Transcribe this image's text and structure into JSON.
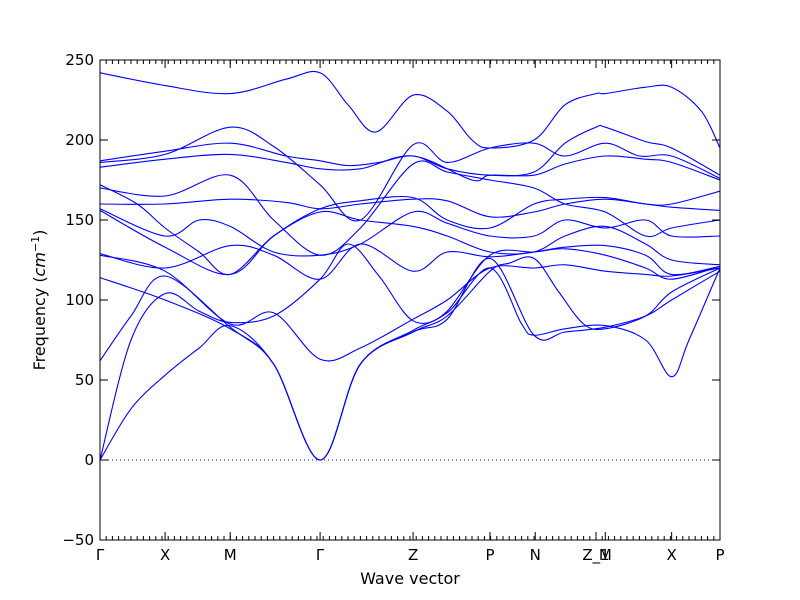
{
  "chart_data": {
    "type": "line",
    "xlabel": "Wave vector",
    "ylabel": "Frequency ($cm^{-1}$)",
    "ylabel_parts": {
      "text": "Frequency (",
      "unit": "cm",
      "exp": "−1",
      "close": ")"
    },
    "ylim": [
      -50,
      250
    ],
    "yticks": [
      -50,
      0,
      50,
      100,
      150,
      200,
      250
    ],
    "ytick_labels": [
      "−50",
      "0",
      "50",
      "100",
      "150",
      "200",
      "250"
    ],
    "xlim": [
      0,
      1
    ],
    "xticks": [
      {
        "x": 0.0,
        "label": "Γ"
      },
      {
        "x": 0.105,
        "label": "X"
      },
      {
        "x": 0.21,
        "label": "M"
      },
      {
        "x": 0.355,
        "label": "Γ"
      },
      {
        "x": 0.505,
        "label": "Z"
      },
      {
        "x": 0.629,
        "label": "P"
      },
      {
        "x": 0.702,
        "label": "N"
      },
      {
        "x": 0.8,
        "label": "Z_1"
      },
      {
        "x": 0.815,
        "label": "M"
      },
      {
        "x": 0.922,
        "label": "X"
      },
      {
        "x": 1.0,
        "label": "P"
      }
    ],
    "zero_line": true,
    "grid": false,
    "legend": "none",
    "line_color": "#0000ff",
    "series": [
      {
        "points": [
          [
            0,
            242
          ],
          [
            0.105,
            234
          ],
          [
            0.21,
            229
          ],
          [
            0.3,
            238
          ],
          [
            0.355,
            242
          ],
          [
            0.4,
            222
          ],
          [
            0.445,
            205
          ],
          [
            0.505,
            228
          ],
          [
            0.56,
            218
          ],
          [
            0.6,
            200
          ],
          [
            0.629,
            195
          ],
          [
            0.7,
            200
          ],
          [
            0.75,
            222
          ],
          [
            0.8,
            229
          ],
          [
            0.815,
            229
          ],
          [
            0.88,
            233
          ],
          [
            0.922,
            233
          ],
          [
            0.97,
            218
          ],
          [
            1.0,
            195
          ]
        ]
      },
      {
        "points": [
          [
            0,
            187
          ],
          [
            0.105,
            193
          ],
          [
            0.21,
            198
          ],
          [
            0.3,
            190
          ],
          [
            0.355,
            187
          ],
          [
            0.4,
            184
          ],
          [
            0.45,
            186
          ],
          [
            0.505,
            190
          ],
          [
            0.56,
            182
          ],
          [
            0.629,
            178
          ],
          [
            0.7,
            180
          ],
          [
            0.75,
            198
          ],
          [
            0.8,
            208
          ],
          [
            0.815,
            208
          ],
          [
            0.88,
            199
          ],
          [
            0.922,
            195
          ],
          [
            1.0,
            178
          ]
        ]
      },
      {
        "points": [
          [
            0,
            186
          ],
          [
            0.105,
            191
          ],
          [
            0.21,
            208
          ],
          [
            0.28,
            196
          ],
          [
            0.355,
            172
          ],
          [
            0.42,
            150
          ],
          [
            0.505,
            197
          ],
          [
            0.56,
            186
          ],
          [
            0.629,
            195
          ],
          [
            0.7,
            198
          ],
          [
            0.75,
            190
          ],
          [
            0.815,
            198
          ],
          [
            0.87,
            190
          ],
          [
            0.922,
            190
          ],
          [
            1.0,
            176
          ]
        ]
      },
      {
        "points": [
          [
            0,
            183
          ],
          [
            0.105,
            188
          ],
          [
            0.21,
            191
          ],
          [
            0.3,
            186
          ],
          [
            0.355,
            182
          ],
          [
            0.42,
            182
          ],
          [
            0.505,
            190
          ],
          [
            0.6,
            175
          ],
          [
            0.629,
            178
          ],
          [
            0.7,
            178
          ],
          [
            0.75,
            185
          ],
          [
            0.815,
            190
          ],
          [
            0.88,
            188
          ],
          [
            0.922,
            186
          ],
          [
            1.0,
            175
          ]
        ]
      },
      {
        "points": [
          [
            0,
            172
          ],
          [
            0.06,
            160
          ],
          [
            0.105,
            145
          ],
          [
            0.16,
            130
          ],
          [
            0.21,
            116
          ],
          [
            0.28,
            140
          ],
          [
            0.355,
            157
          ],
          [
            0.42,
            162
          ],
          [
            0.505,
            164
          ],
          [
            0.56,
            150
          ],
          [
            0.629,
            145
          ],
          [
            0.7,
            160
          ],
          [
            0.75,
            163
          ],
          [
            0.815,
            164
          ],
          [
            0.88,
            160
          ],
          [
            0.922,
            160
          ],
          [
            1.0,
            168
          ]
        ]
      },
      {
        "points": [
          [
            0,
            170
          ],
          [
            0.105,
            165
          ],
          [
            0.21,
            178
          ],
          [
            0.28,
            150
          ],
          [
            0.355,
            128
          ],
          [
            0.42,
            145
          ],
          [
            0.505,
            185
          ],
          [
            0.56,
            180
          ],
          [
            0.629,
            175
          ],
          [
            0.7,
            170
          ],
          [
            0.75,
            160
          ],
          [
            0.815,
            155
          ],
          [
            0.88,
            140
          ],
          [
            0.922,
            145
          ],
          [
            1.0,
            150
          ]
        ]
      },
      {
        "points": [
          [
            0,
            160
          ],
          [
            0.105,
            160
          ],
          [
            0.21,
            163
          ],
          [
            0.3,
            161
          ],
          [
            0.355,
            157
          ],
          [
            0.42,
            160
          ],
          [
            0.505,
            163
          ],
          [
            0.56,
            162
          ],
          [
            0.629,
            152
          ],
          [
            0.7,
            155
          ],
          [
            0.75,
            160
          ],
          [
            0.815,
            163
          ],
          [
            0.88,
            160
          ],
          [
            0.922,
            158
          ],
          [
            1.0,
            156
          ]
        ]
      },
      {
        "points": [
          [
            0,
            157
          ],
          [
            0.105,
            140
          ],
          [
            0.16,
            150
          ],
          [
            0.21,
            146
          ],
          [
            0.28,
            130
          ],
          [
            0.355,
            128
          ],
          [
            0.42,
            135
          ],
          [
            0.505,
            155
          ],
          [
            0.56,
            148
          ],
          [
            0.629,
            140
          ],
          [
            0.7,
            140
          ],
          [
            0.75,
            150
          ],
          [
            0.815,
            145
          ],
          [
            0.88,
            150
          ],
          [
            0.922,
            140
          ],
          [
            1.0,
            140
          ]
        ]
      },
      {
        "points": [
          [
            0,
            156
          ],
          [
            0.105,
            133
          ],
          [
            0.21,
            116
          ],
          [
            0.28,
            140
          ],
          [
            0.355,
            155
          ],
          [
            0.42,
            150
          ],
          [
            0.505,
            146
          ],
          [
            0.56,
            140
          ],
          [
            0.629,
            130
          ],
          [
            0.7,
            130
          ],
          [
            0.75,
            140
          ],
          [
            0.815,
            146
          ],
          [
            0.88,
            135
          ],
          [
            0.922,
            125
          ],
          [
            1.0,
            122
          ]
        ]
      },
      {
        "points": [
          [
            0,
            129
          ],
          [
            0.105,
            120
          ],
          [
            0.21,
            134
          ],
          [
            0.28,
            128
          ],
          [
            0.355,
            113
          ],
          [
            0.42,
            135
          ],
          [
            0.505,
            118
          ],
          [
            0.56,
            130
          ],
          [
            0.629,
            127
          ],
          [
            0.7,
            130
          ],
          [
            0.75,
            133
          ],
          [
            0.815,
            134
          ],
          [
            0.88,
            128
          ],
          [
            0.922,
            116
          ],
          [
            1.0,
            121
          ]
        ]
      },
      {
        "points": [
          [
            0,
            128
          ],
          [
            0.105,
            118
          ],
          [
            0.21,
            85
          ],
          [
            0.28,
            92
          ],
          [
            0.355,
            63
          ],
          [
            0.42,
            70
          ],
          [
            0.505,
            88
          ],
          [
            0.56,
            100
          ],
          [
            0.629,
            120
          ],
          [
            0.7,
            120
          ],
          [
            0.75,
            122
          ],
          [
            0.815,
            118
          ],
          [
            0.88,
            116
          ],
          [
            0.922,
            115
          ],
          [
            1.0,
            120
          ]
        ]
      },
      {
        "points": [
          [
            0,
            114
          ],
          [
            0.105,
            100
          ],
          [
            0.21,
            82
          ],
          [
            0.28,
            60
          ],
          [
            0.355,
            0
          ],
          [
            0.42,
            60
          ],
          [
            0.505,
            80
          ],
          [
            0.56,
            90
          ],
          [
            0.629,
            118
          ],
          [
            0.66,
            123
          ],
          [
            0.7,
            126
          ],
          [
            0.74,
            105
          ],
          [
            0.78,
            85
          ],
          [
            0.815,
            82
          ],
          [
            0.88,
            90
          ],
          [
            0.922,
            105
          ],
          [
            1.0,
            120
          ]
        ]
      },
      {
        "points": [
          [
            0,
            62
          ],
          [
            0.05,
            90
          ],
          [
            0.105,
            115
          ],
          [
            0.21,
            83
          ],
          [
            0.28,
            60
          ],
          [
            0.355,
            0
          ],
          [
            0.42,
            60
          ],
          [
            0.505,
            80
          ],
          [
            0.56,
            88
          ],
          [
            0.629,
            126
          ],
          [
            0.7,
            78
          ],
          [
            0.75,
            80
          ],
          [
            0.815,
            83
          ],
          [
            0.88,
            90
          ],
          [
            0.922,
            100
          ],
          [
            1.0,
            118
          ]
        ]
      },
      {
        "points": [
          [
            0,
            0
          ],
          [
            0.05,
            75
          ],
          [
            0.105,
            104
          ],
          [
            0.16,
            93
          ],
          [
            0.21,
            86
          ],
          [
            0.28,
            90
          ],
          [
            0.355,
            113
          ],
          [
            0.4,
            135
          ],
          [
            0.45,
            115
          ],
          [
            0.505,
            87
          ],
          [
            0.56,
            92
          ],
          [
            0.629,
            120
          ],
          [
            0.68,
            85
          ],
          [
            0.7,
            78
          ],
          [
            0.75,
            82
          ],
          [
            0.815,
            84
          ],
          [
            0.88,
            75
          ],
          [
            0.922,
            52
          ],
          [
            0.95,
            75
          ],
          [
            1.0,
            120
          ]
        ]
      },
      {
        "points": [
          [
            0,
            0
          ],
          [
            0.05,
            32
          ],
          [
            0.105,
            53
          ],
          [
            0.16,
            70
          ],
          [
            0.21,
            84
          ],
          [
            0.28,
            60
          ],
          [
            0.355,
            0
          ],
          [
            0.42,
            60
          ],
          [
            0.505,
            81
          ],
          [
            0.56,
            93
          ],
          [
            0.629,
            128
          ],
          [
            0.7,
            130
          ],
          [
            0.75,
            132
          ],
          [
            0.815,
            128
          ],
          [
            0.88,
            120
          ],
          [
            0.922,
            113
          ],
          [
            1.0,
            121
          ]
        ]
      }
    ]
  }
}
